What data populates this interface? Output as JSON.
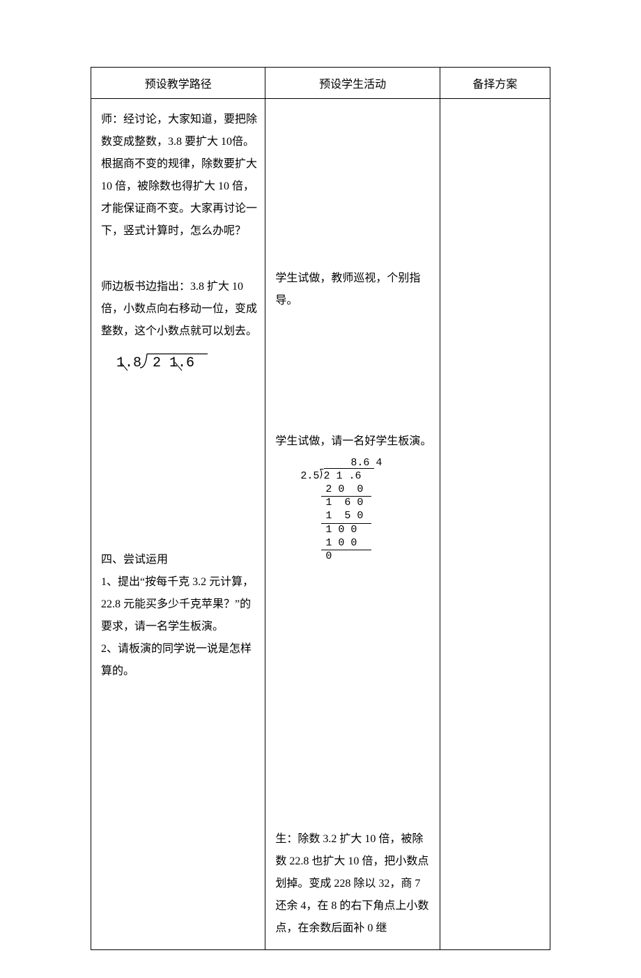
{
  "table": {
    "headers": [
      "预设教学路径",
      "预设学生活动",
      "备择方案"
    ],
    "col_widths_pct": [
      38,
      38,
      24
    ],
    "border_color": "#000000",
    "font_family": "SimSun",
    "header_fontsize": 16,
    "body_fontsize": 16,
    "line_height": 2.0
  },
  "col1": {
    "p1": "师：经讨论，大家知道，要把除数变成整数，3.8 要扩大 10倍。根据商不变的规律，除数要扩大 10 倍，被除数也得扩大 10 倍，才能保证商不变。大家再讨论一下，竖式计算时，怎么办呢？",
    "p2": "师边板书边指出：3.8 扩大 10倍，小数点向右移动一位，变成整数，这个小数点就可以划去。",
    "division1": {
      "divisor": "1.8",
      "dividend": "2 1.6",
      "stroke_color": "#000000"
    },
    "section4_title": "四、尝试运用",
    "section4_item1": "1、提出“按每千克 3.2 元计算，22.8 元能买多少千克苹果？”的要求，请一名学生板演。",
    "section4_item2": "2、请板演的同学说一说是怎样算的。"
  },
  "col2": {
    "p1": "学生试做，教师巡视，个别指导。",
    "p2": "学生试做，请一名好学生板演。",
    "longdiv": {
      "quotient": "8.6 4",
      "divisor": "2.5",
      "dividend": "2 1 .6",
      "rows": [
        "2 0  0",
        "1  6 0",
        "1  5 0",
        "1 0 0",
        "1 0 0",
        "0"
      ],
      "rules_after_rows": [
        0,
        2,
        4
      ],
      "font_family": "Courier New",
      "fontsize": 15
    },
    "p3": "生：除数 3.2 扩大 10 倍，被除数 22.8 也扩大 10 倍，把小数点划掉。变成 228 除以 32，商 7 还余 4，在 8 的右下角点上小数点，在余数后面补 0 继"
  },
  "col3": {
    "content": ""
  },
  "colors": {
    "background": "#ffffff",
    "text": "#000000"
  }
}
